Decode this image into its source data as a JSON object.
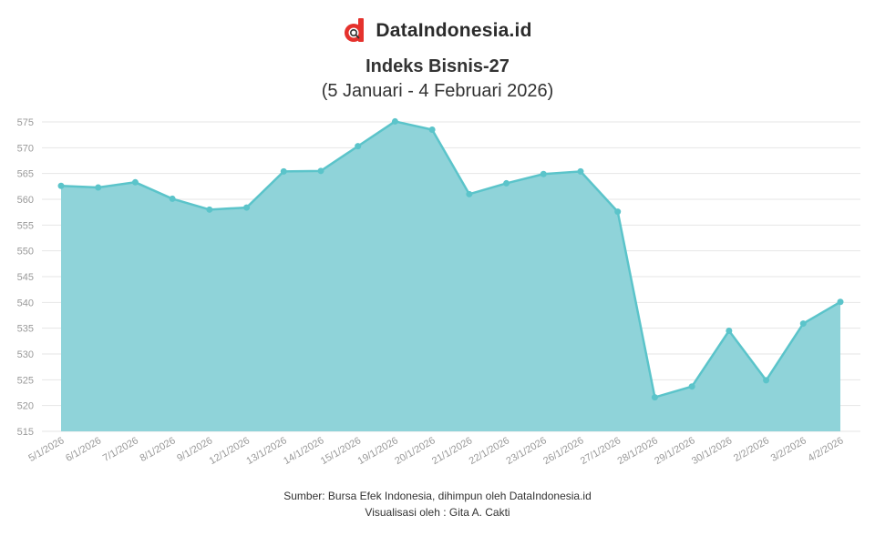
{
  "brand": {
    "name": "DataIndonesia.id",
    "accent": "#e5322d"
  },
  "title": "Indeks Bisnis-27",
  "subtitle": "(5 Januari - 4 Februari 2026)",
  "footer": {
    "source": "Sumber: Bursa Efek Indonesia, dihimpun oleh DataIndonesia.id",
    "credit": "Visualisasi oleh : Gita A. Cakti"
  },
  "colors": {
    "line": "#5bc4ca",
    "fill": "#8fd3d9",
    "grid": "#e6e6e6",
    "tick": "#999999"
  },
  "chart_data": {
    "type": "area",
    "title": "Indeks Bisnis-27",
    "subtitle": "(5 Januari - 4 Februari 2026)",
    "x": [
      "5/1/2026",
      "6/1/2026",
      "7/1/2026",
      "8/1/2026",
      "9/1/2026",
      "12/1/2026",
      "13/1/2026",
      "14/1/2026",
      "15/1/2026",
      "19/1/2026",
      "20/1/2026",
      "21/1/2026",
      "22/1/2026",
      "23/1/2026",
      "26/1/2026",
      "27/1/2026",
      "28/1/2026",
      "29/1/2026",
      "30/1/2026",
      "2/2/2026",
      "3/2/2026",
      "4/2/2026"
    ],
    "series": [
      {
        "values": [
          562.6,
          562.3,
          563.3,
          560.1,
          558.0,
          558.4,
          565.4,
          565.5,
          570.3,
          575.1,
          573.5,
          561.0,
          563.1,
          564.9,
          565.4,
          557.6,
          521.6,
          523.7,
          534.5,
          524.9,
          535.9,
          540.1
        ]
      }
    ],
    "yticks": [
      515,
      520,
      525,
      530,
      535,
      540,
      545,
      550,
      555,
      560,
      565,
      570,
      575
    ],
    "ylim": [
      515,
      575
    ],
    "grid": true,
    "legend": "none",
    "xlabel": "",
    "ylabel": ""
  }
}
